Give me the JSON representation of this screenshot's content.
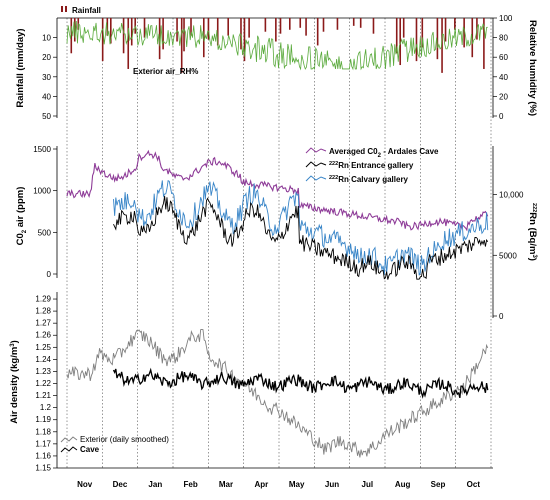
{
  "chart_data": [
    {
      "type": "bar+line",
      "panel": "top",
      "left_axis": {
        "label": "Rainfall (mm/day)",
        "range": [
          50,
          0
        ],
        "ticks": [
          "10",
          "20",
          "30",
          "40",
          "50"
        ]
      },
      "right_axis": {
        "label": "Relative humidity (%)",
        "range": [
          0,
          100
        ],
        "ticks": [
          "0",
          "20",
          "40",
          "60",
          "80",
          "100"
        ]
      },
      "series": [
        {
          "name": "Rainfall",
          "color": "#8b1a1a",
          "kind": "bar"
        },
        {
          "name": "Exterior air_RH%",
          "color": "#5aaa3c",
          "kind": "line"
        }
      ]
    },
    {
      "type": "line",
      "panel": "middle",
      "left_axis": {
        "label": "C0",
        "label_sub": "2",
        "label_tail": " air (ppm)",
        "range": [
          0,
          1500
        ],
        "ticks": [
          "0",
          "500",
          "1000",
          "1500"
        ]
      },
      "right_axis": {
        "label": "Rn (Bq/m",
        "label_sup": "222",
        "label_tail": ")",
        "range": [
          0,
          14000
        ],
        "ticks": [
          "0",
          "5000",
          "10,000"
        ]
      },
      "series": [
        {
          "name": "Averaged C0",
          "name_sub": "2",
          "name_tail": " - Ardales Cave",
          "color": "#8e3c98"
        },
        {
          "name": "Rn Entrance gallery",
          "name_sup": "222",
          "color": "#000000"
        },
        {
          "name": "Rn Calvary gallery",
          "name_sup": "222",
          "color": "#3a86c8"
        }
      ]
    },
    {
      "type": "line",
      "panel": "bottom",
      "left_axis": {
        "label": "Air density (kg/m",
        "label_sup": "3",
        "label_tail": ")",
        "range": [
          1.15,
          1.295
        ],
        "ticks": [
          "1.15",
          "1.16",
          "1.17",
          "1.18",
          "1.19",
          "1.2",
          "1.21",
          "1.22",
          "1.23",
          "1.24",
          "1.25",
          "1.26",
          "1.27",
          "1.28",
          "1.29"
        ]
      },
      "series": [
        {
          "name": "Exterior (daily smoothed)",
          "color": "#808080"
        },
        {
          "name": "Cave",
          "color": "#000000"
        }
      ]
    }
  ],
  "x_axis": {
    "months": [
      "Nov",
      "Dec",
      "Jan",
      "Feb",
      "Mar",
      "Apr",
      "May",
      "Jun",
      "Jul",
      "Aug",
      "Sep",
      "Oct"
    ]
  }
}
